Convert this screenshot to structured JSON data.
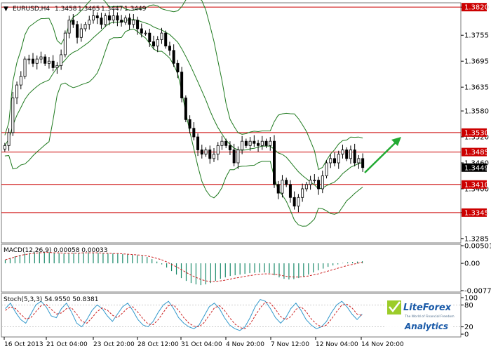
{
  "chart_data": [
    {
      "type": "candlestick",
      "header": {
        "marker": "▼",
        "symbol": "EURUSD,H4",
        "open": "1.3458",
        "high": "1.3465",
        "low": "1.3447",
        "close": "1.3449"
      },
      "ylim": [
        1.3275,
        1.383
      ],
      "y_ticks": [
        "1.3820",
        "1.3755",
        "1.3695",
        "1.3635",
        "1.3580",
        "1.3520",
        "1.3460",
        "1.3400",
        "1.3345",
        "1.3285"
      ],
      "current_price": "1.3449",
      "levels": [
        {
          "value": 1.382,
          "label": "1.3820"
        },
        {
          "value": 1.353,
          "label": "1.3530"
        },
        {
          "value": 1.3485,
          "label": "1.3485"
        },
        {
          "value": 1.341,
          "label": "1.3410"
        },
        {
          "value": 1.3345,
          "label": "1.3345"
        }
      ],
      "indicators": [
        "Bollinger Bands"
      ],
      "closes": [
        1.35,
        1.353,
        1.361,
        1.364,
        1.366,
        1.37,
        1.37,
        1.369,
        1.37,
        1.3705,
        1.369,
        1.3695,
        1.368,
        1.3685,
        1.371,
        1.376,
        1.379,
        1.378,
        1.375,
        1.377,
        1.378,
        1.379,
        1.38,
        1.3795,
        1.378,
        1.38,
        1.379,
        1.38,
        1.379,
        1.3785,
        1.3795,
        1.378,
        1.379,
        1.377,
        1.376,
        1.376,
        1.374,
        1.373,
        1.3745,
        1.376,
        1.373,
        1.372,
        1.369,
        1.367,
        1.361,
        1.356,
        1.354,
        1.352,
        1.349,
        1.348,
        1.349,
        1.347,
        1.348,
        1.35,
        1.351,
        1.35,
        1.349,
        1.346,
        1.349,
        1.351,
        1.35,
        1.351,
        1.3505,
        1.35,
        1.351,
        1.35,
        1.351,
        1.341,
        1.339,
        1.342,
        1.341,
        1.338,
        1.336,
        1.338,
        1.34,
        1.341,
        1.342,
        1.342,
        1.34,
        1.343,
        1.346,
        1.347,
        1.346,
        1.348,
        1.349,
        1.347,
        1.349,
        1.346,
        1.347,
        1.3449
      ]
    },
    {
      "type": "histogram",
      "label": "MACD(12,26,9) 0.00058 0.00033",
      "y_ticks": [
        "0.00501",
        "0.00",
        "-0.00777"
      ],
      "ylim": [
        -0.00777,
        0.00501
      ],
      "values": [
        0.001,
        0.0015,
        0.002,
        0.0024,
        0.0028,
        0.003,
        0.0031,
        0.0032,
        0.0032,
        0.0031,
        0.003,
        0.0029,
        0.0028,
        0.0028,
        0.0029,
        0.003,
        0.0031,
        0.0031,
        0.003,
        0.003,
        0.0029,
        0.0028,
        0.0028,
        0.0027,
        0.0026,
        0.0025,
        0.0024,
        0.0023,
        0.0021,
        0.0018,
        0.0012,
        0.0005,
        -0.0003,
        -0.0012,
        -0.0022,
        -0.0032,
        -0.0042,
        -0.005,
        -0.0056,
        -0.006,
        -0.0062,
        -0.006,
        -0.0056,
        -0.005,
        -0.0044,
        -0.004,
        -0.0036,
        -0.0034,
        -0.0032,
        -0.003,
        -0.0028,
        -0.0027,
        -0.0026,
        -0.0026,
        -0.0028,
        -0.0034,
        -0.004,
        -0.0044,
        -0.0046,
        -0.0045,
        -0.0042,
        -0.0038,
        -0.0032,
        -0.0026,
        -0.002,
        -0.0015,
        -0.001,
        -0.0006,
        -0.0003,
        0.0001,
        0.0003,
        0.0004,
        0.0005,
        0.0006
      ],
      "signal": [
        0.001,
        0.0014,
        0.0018,
        0.0022,
        0.0025,
        0.0027,
        0.0029,
        0.003,
        0.0031,
        0.0031,
        0.003,
        0.003,
        0.0029,
        0.0029,
        0.0029,
        0.0029,
        0.003,
        0.003,
        0.003,
        0.003,
        0.0029,
        0.0029,
        0.0028,
        0.0028,
        0.0027,
        0.0026,
        0.0025,
        0.0024,
        0.0023,
        0.0021,
        0.0018,
        0.0014,
        0.001,
        0.0004,
        -0.0003,
        -0.001,
        -0.0018,
        -0.0026,
        -0.0034,
        -0.004,
        -0.0046,
        -0.005,
        -0.0052,
        -0.0052,
        -0.005,
        -0.0048,
        -0.0045,
        -0.0042,
        -0.004,
        -0.0037,
        -0.0035,
        -0.0033,
        -0.0031,
        -0.003,
        -0.003,
        -0.0031,
        -0.0033,
        -0.0036,
        -0.0038,
        -0.0039,
        -0.0039,
        -0.0038,
        -0.0036,
        -0.0033,
        -0.003,
        -0.0026,
        -0.0022,
        -0.0018,
        -0.0014,
        -0.001,
        -0.0006,
        -0.0003,
        0.0,
        0.0003
      ]
    },
    {
      "type": "line",
      "label": "Stoch(5,3,3) 54.9550 50.8381",
      "y_ticks": [
        "100",
        "80",
        "20",
        "0"
      ],
      "ylim": [
        0,
        100
      ],
      "k": [
        70,
        85,
        60,
        40,
        30,
        55,
        80,
        90,
        75,
        50,
        45,
        70,
        85,
        60,
        30,
        20,
        40,
        65,
        80,
        70,
        50,
        35,
        55,
        75,
        85,
        65,
        40,
        25,
        20,
        35,
        60,
        80,
        90,
        70,
        45,
        30,
        20,
        15,
        25,
        50,
        75,
        85,
        70,
        45,
        25,
        15,
        10,
        20,
        45,
        75,
        95,
        90,
        70,
        45,
        30,
        45,
        70,
        85,
        65,
        40,
        25,
        15,
        20,
        35,
        60,
        80,
        90,
        75,
        55,
        40,
        55
      ],
      "d": [
        65,
        75,
        70,
        55,
        42,
        45,
        62,
        78,
        82,
        68,
        55,
        58,
        70,
        72,
        55,
        35,
        30,
        45,
        62,
        72,
        66,
        52,
        45,
        58,
        72,
        75,
        60,
        42,
        28,
        26,
        40,
        60,
        78,
        80,
        65,
        45,
        30,
        22,
        20,
        32,
        52,
        72,
        78,
        65,
        45,
        28,
        18,
        15,
        28,
        50,
        72,
        88,
        85,
        68,
        48,
        40,
        48,
        68,
        75,
        62,
        42,
        28,
        20,
        25,
        42,
        62,
        80,
        82,
        72,
        55,
        51
      ]
    }
  ],
  "x_axis": {
    "labels": [
      "16 Oct 2013",
      "21 Oct 04:00",
      "23 Oct 20:00",
      "28 Oct 12:00",
      "31 Oct 04:00",
      "4 Nov 20:00",
      "7 Nov 12:00",
      "12 Nov 04:00",
      "14 Nov 20:00"
    ]
  },
  "forecast_arrow": {
    "direction": "up",
    "color": "#22aa33"
  },
  "logo": {
    "name": "LiteForex",
    "tagline": "The World of Financial Freedom",
    "product": "Analytics"
  },
  "colors": {
    "bull": "#33aa33",
    "bear": "#000000",
    "bands": "#1f7a1f",
    "level": "#cc0000",
    "macd": "#1a8a6a",
    "signal": "#cc2222",
    "stoch_k": "#3399cc",
    "stoch_d": "#cc2222"
  }
}
